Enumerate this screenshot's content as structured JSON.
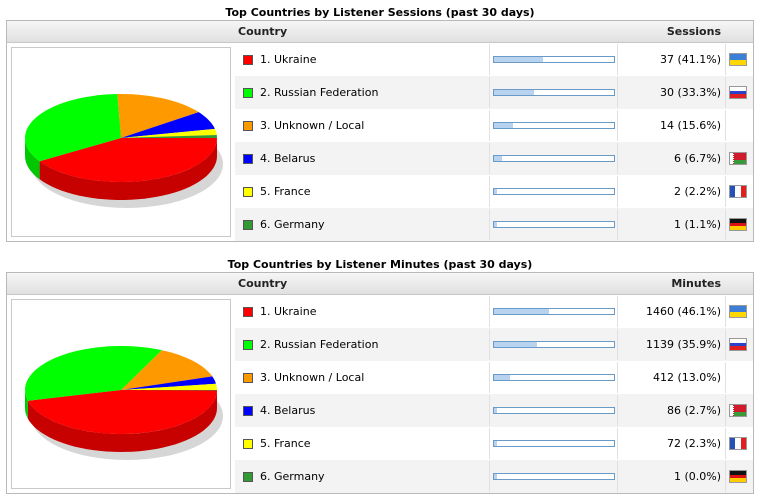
{
  "sessions": {
    "title": "Top Countries by Listener Sessions (past 30 days)",
    "col_country": "Country",
    "col_metric": "Sessions",
    "rows": [
      {
        "label": "1. Ukraine",
        "value": "37 (41.1%)",
        "percent": 41.1,
        "color": "#ff0000",
        "flag": "ukraine-flag-icon"
      },
      {
        "label": "2. Russian Federation",
        "value": "30 (33.3%)",
        "percent": 33.3,
        "color": "#00ff00",
        "flag": "russia-flag-icon"
      },
      {
        "label": "3. Unknown / Local",
        "value": "14 (15.6%)",
        "percent": 15.6,
        "color": "#ff9900",
        "flag": ""
      },
      {
        "label": "4. Belarus",
        "value": "6 (6.7%)",
        "percent": 6.7,
        "color": "#0000ff",
        "flag": "belarus-flag-icon"
      },
      {
        "label": "5. France",
        "value": "2 (2.2%)",
        "percent": 2.2,
        "color": "#ffff00",
        "flag": "france-flag-icon"
      },
      {
        "label": "6. Germany",
        "value": "1 (1.1%)",
        "percent": 1.1,
        "color": "#339933",
        "flag": "germany-flag-icon"
      }
    ]
  },
  "minutes": {
    "title": "Top Countries by Listener Minutes (past 30 days)",
    "col_country": "Country",
    "col_metric": "Minutes",
    "rows": [
      {
        "label": "1. Ukraine",
        "value": "1460 (46.1%)",
        "percent": 46.1,
        "color": "#ff0000",
        "flag": "ukraine-flag-icon"
      },
      {
        "label": "2. Russian Federation",
        "value": "1139 (35.9%)",
        "percent": 35.9,
        "color": "#00ff00",
        "flag": "russia-flag-icon"
      },
      {
        "label": "3. Unknown / Local",
        "value": "412 (13.0%)",
        "percent": 13.0,
        "color": "#ff9900",
        "flag": ""
      },
      {
        "label": "4. Belarus",
        "value": "86 (2.7%)",
        "percent": 2.7,
        "color": "#0000ff",
        "flag": "belarus-flag-icon"
      },
      {
        "label": "5. France",
        "value": "72 (2.3%)",
        "percent": 2.3,
        "color": "#ffff00",
        "flag": "france-flag-icon"
      },
      {
        "label": "6. Germany",
        "value": "1 (0.0%)",
        "percent": 0.0,
        "color": "#339933",
        "flag": "germany-flag-icon"
      }
    ]
  }
}
